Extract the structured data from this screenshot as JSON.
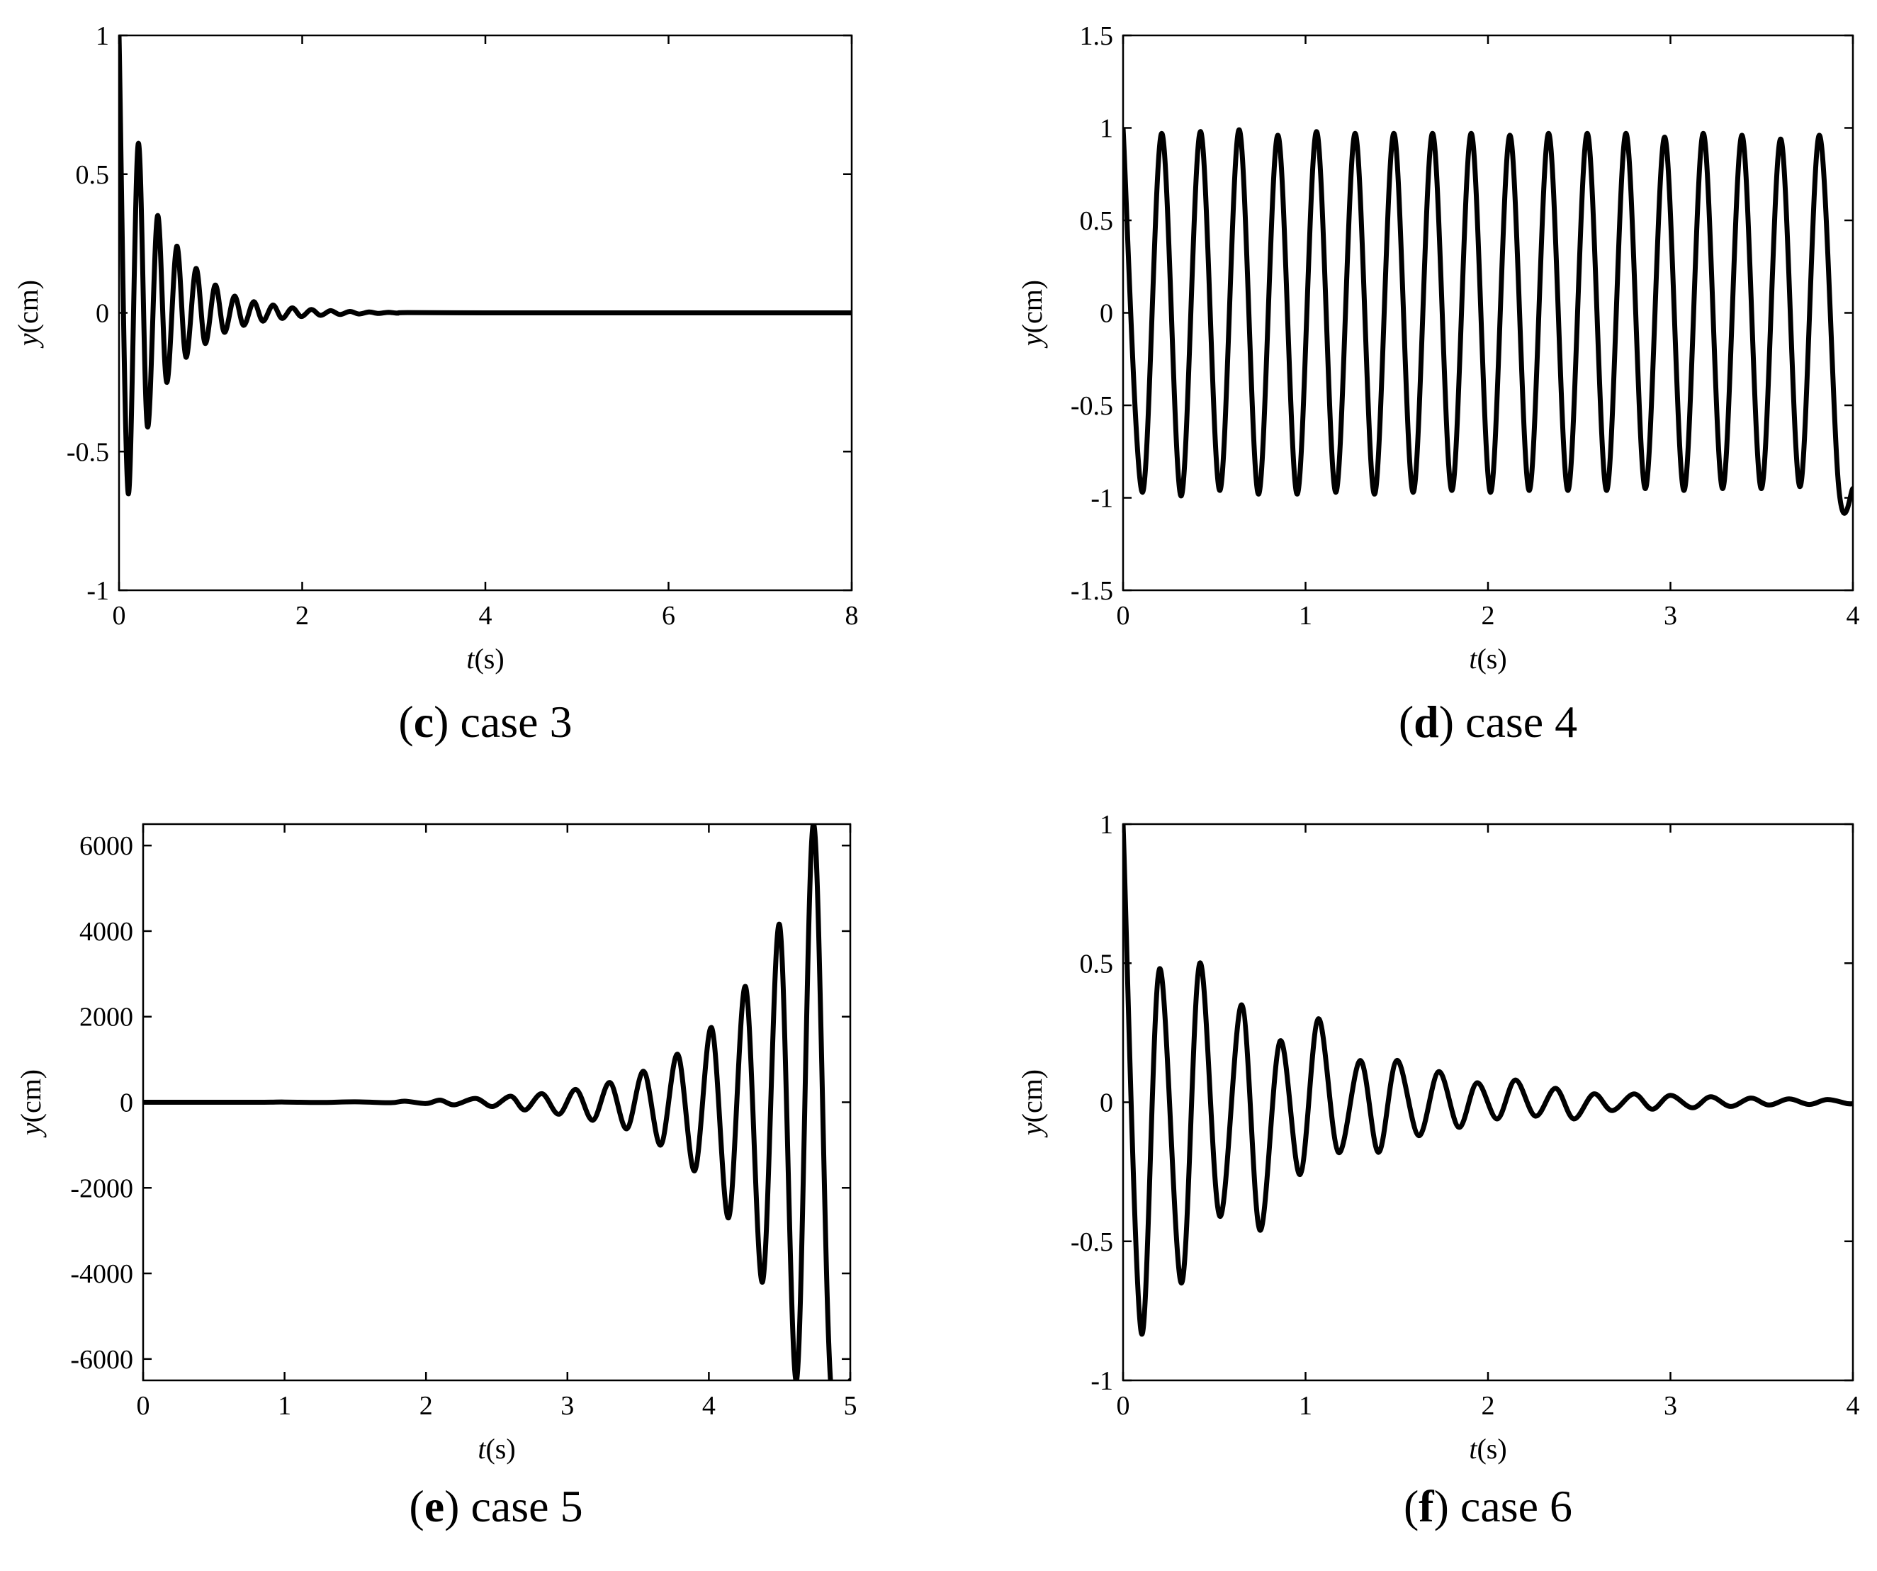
{
  "figure": {
    "panels": [
      {
        "id": "c",
        "caption": {
          "letter": "c",
          "text": "case 3"
        },
        "xlabel": {
          "italic": "t",
          "rest": "(s)"
        },
        "ylabel": {
          "italic": "y",
          "rest": "(cm)"
        }
      },
      {
        "id": "d",
        "caption": {
          "letter": "d",
          "text": "case 4"
        },
        "xlabel": {
          "italic": "t",
          "rest": "(s)"
        },
        "ylabel": {
          "italic": "y",
          "rest": "(cm)"
        }
      },
      {
        "id": "e",
        "caption": {
          "letter": "e",
          "text": "case 5"
        },
        "xlabel": {
          "italic": "t",
          "rest": "(s)"
        },
        "ylabel": {
          "italic": "y",
          "rest": "(cm)"
        }
      },
      {
        "id": "f",
        "caption": {
          "letter": "f",
          "text": "case 6"
        },
        "xlabel": {
          "italic": "t",
          "rest": "(s)"
        },
        "ylabel": {
          "italic": "y",
          "rest": "(cm)"
        }
      }
    ]
  },
  "chart_data": [
    {
      "type": "line",
      "panel": "c",
      "xlim": [
        0,
        8
      ],
      "ylim": [
        -1,
        1
      ],
      "xticks": [
        0,
        2,
        4,
        6,
        8
      ],
      "yticks": [
        -1,
        -0.5,
        0,
        0.5,
        1
      ],
      "xtick_labels": [
        "0",
        "2",
        "4",
        "6",
        "8"
      ],
      "ytick_labels": [
        "-1",
        "-0.5",
        "0",
        "0.5",
        "1"
      ],
      "grid": false,
      "line_color": "#000000",
      "x": [
        0,
        0.1,
        0.21,
        0.31,
        0.42,
        0.52,
        0.63,
        0.73,
        0.84,
        0.94,
        1.05,
        1.15,
        1.26,
        1.36,
        1.47,
        1.57,
        1.68,
        1.78,
        1.89,
        1.99,
        2.1,
        2.2,
        2.31,
        2.41,
        2.52,
        2.62,
        2.73,
        2.83,
        2.94,
        3.04,
        3.15,
        4.0,
        6.0,
        8.0
      ],
      "y": [
        1.0,
        -0.65,
        0.61,
        -0.41,
        0.35,
        -0.25,
        0.24,
        -0.16,
        0.16,
        -0.11,
        0.1,
        -0.07,
        0.06,
        -0.045,
        0.04,
        -0.03,
        0.028,
        -0.02,
        0.018,
        -0.013,
        0.012,
        -0.009,
        0.008,
        -0.006,
        0.005,
        -0.004,
        0.003,
        -0.002,
        0.002,
        -0.001,
        0.001,
        0,
        0,
        0
      ]
    },
    {
      "type": "line",
      "panel": "d",
      "xlim": [
        0,
        4
      ],
      "ylim": [
        -1.5,
        1.5
      ],
      "xticks": [
        0,
        1,
        2,
        3,
        4
      ],
      "yticks": [
        -1.5,
        -1,
        -0.5,
        0,
        0.5,
        1,
        1.5
      ],
      "xtick_labels": [
        "0",
        "1",
        "2",
        "3",
        "4"
      ],
      "ytick_labels": [
        "-1.5",
        "-1",
        "-0.5",
        "0",
        "0.5",
        "1",
        "1.5"
      ],
      "grid": false,
      "line_color": "#000000",
      "x": [
        0,
        0.106,
        0.212,
        0.318,
        0.424,
        0.53,
        0.636,
        0.742,
        0.848,
        0.954,
        1.06,
        1.166,
        1.272,
        1.378,
        1.484,
        1.59,
        1.696,
        1.802,
        1.908,
        2.014,
        2.12,
        2.226,
        2.332,
        2.438,
        2.544,
        2.65,
        2.756,
        2.862,
        2.968,
        3.074,
        3.18,
        3.286,
        3.392,
        3.498,
        3.604,
        3.71,
        3.816,
        3.922,
        4.0
      ],
      "y": [
        1.0,
        -0.97,
        0.97,
        -0.99,
        0.98,
        -0.96,
        0.99,
        -0.98,
        0.96,
        -0.98,
        0.98,
        -0.97,
        0.97,
        -0.98,
        0.97,
        -0.97,
        0.97,
        -0.96,
        0.97,
        -0.97,
        0.96,
        -0.96,
        0.97,
        -0.96,
        0.97,
        -0.96,
        0.97,
        -0.95,
        0.95,
        -0.96,
        0.97,
        -0.95,
        0.96,
        -0.95,
        0.94,
        -0.94,
        0.96,
        -0.94,
        -0.95
      ]
    },
    {
      "type": "line",
      "panel": "e",
      "xlim": [
        0,
        5
      ],
      "ylim": [
        -6500,
        6500
      ],
      "xticks": [
        0,
        1,
        2,
        3,
        4,
        5
      ],
      "yticks": [
        -6000,
        -4000,
        -2000,
        0,
        2000,
        4000,
        6000
      ],
      "xtick_labels": [
        "0",
        "1",
        "2",
        "3",
        "4",
        "5"
      ],
      "ytick_labels": [
        "-6000",
        "-4000",
        "-2000",
        "0",
        "2000",
        "4000",
        "6000"
      ],
      "grid": false,
      "line_color": "#000000",
      "x": [
        0,
        0.8,
        1.0,
        1.25,
        1.5,
        1.75,
        1.85,
        2.0,
        2.1,
        2.2,
        2.35,
        2.47,
        2.6,
        2.7,
        2.82,
        2.94,
        3.06,
        3.18,
        3.3,
        3.42,
        3.54,
        3.66,
        3.78,
        3.9,
        4.02,
        4.14,
        4.26,
        4.38,
        4.5,
        4.62,
        4.74,
        4.86,
        5.0
      ],
      "y": [
        0,
        0,
        5,
        -5,
        10,
        -10,
        25,
        -30,
        50,
        -60,
        90,
        -100,
        140,
        -180,
        200,
        -280,
        300,
        -420,
        460,
        -620,
        720,
        -1000,
        1120,
        -1600,
        1740,
        -2700,
        2700,
        -4200,
        4150,
        -6500,
        6500,
        -6500,
        -6500
      ]
    },
    {
      "type": "line",
      "panel": "f",
      "xlim": [
        0,
        4
      ],
      "ylim": [
        -1,
        1
      ],
      "xticks": [
        0,
        1,
        2,
        3,
        4
      ],
      "yticks": [
        -1,
        -0.5,
        0,
        0.5,
        1
      ],
      "xtick_labels": [
        "0",
        "1",
        "2",
        "3",
        "4"
      ],
      "ytick_labels": [
        "-1",
        "-0.5",
        "0",
        "0.5",
        "1"
      ],
      "grid": false,
      "line_color": "#000000",
      "x": [
        0,
        0.1,
        0.2,
        0.32,
        0.42,
        0.53,
        0.65,
        0.75,
        0.86,
        0.97,
        1.07,
        1.18,
        1.3,
        1.4,
        1.5,
        1.62,
        1.73,
        1.84,
        1.94,
        2.05,
        2.15,
        2.26,
        2.37,
        2.47,
        2.58,
        2.68,
        2.8,
        2.9,
        3.0,
        3.12,
        3.22,
        3.33,
        3.44,
        3.54,
        3.65,
        3.76,
        3.86,
        3.97,
        4.0
      ],
      "y": [
        1.0,
        -0.83,
        0.48,
        -0.65,
        0.5,
        -0.41,
        0.35,
        -0.46,
        0.22,
        -0.26,
        0.3,
        -0.18,
        0.15,
        -0.18,
        0.15,
        -0.12,
        0.11,
        -0.09,
        0.07,
        -0.06,
        0.08,
        -0.05,
        0.05,
        -0.06,
        0.03,
        -0.03,
        0.03,
        -0.025,
        0.025,
        -0.02,
        0.02,
        -0.015,
        0.015,
        -0.01,
        0.012,
        -0.008,
        0.01,
        -0.005,
        -0.005
      ]
    }
  ]
}
